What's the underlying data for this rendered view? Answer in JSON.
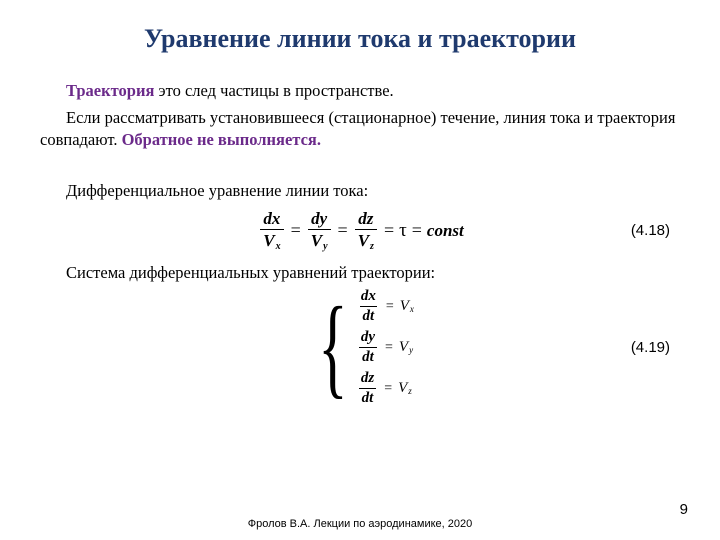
{
  "title": "Уравнение линии тока и траектории",
  "p1_term": "Траектория",
  "p1_rest": " это след частицы в пространстве.",
  "p2a": "Если рассматривать установившееся (стационарное) течение, линия тока и траектория совпадают. ",
  "p2_emph": "Обратное не выполняется.",
  "p3": "Дифференциальное уравнение линии тока:",
  "p4": "Система дифференциальных уравнений траектории:",
  "eq1": {
    "num1": "dx",
    "den1v": "V",
    "den1s": "x",
    "num2": "dy",
    "den2v": "V",
    "den2s": "y",
    "num3": "dz",
    "den3v": "V",
    "den3s": "z",
    "tau": "τ",
    "const": "const",
    "number": "(4.18)"
  },
  "eq2": {
    "l1_num": "dx",
    "l1_den": "dt",
    "l1_rhsV": "V",
    "l1_rhsS": "x",
    "l2_num": "dy",
    "l2_den": "dt",
    "l2_rhsV": "V",
    "l2_rhsS": "y",
    "l3_num": "dz",
    "l3_den": "dt",
    "l3_rhsV": "V",
    "l3_rhsS": "z",
    "number": "(4.19)"
  },
  "footer": "Фролов В.А. Лекции по аэродинамике, 2020",
  "pagenum": "9",
  "colors": {
    "title": "#1f3a6e",
    "term": "#6b2a8a",
    "bg": "#ffffff"
  }
}
